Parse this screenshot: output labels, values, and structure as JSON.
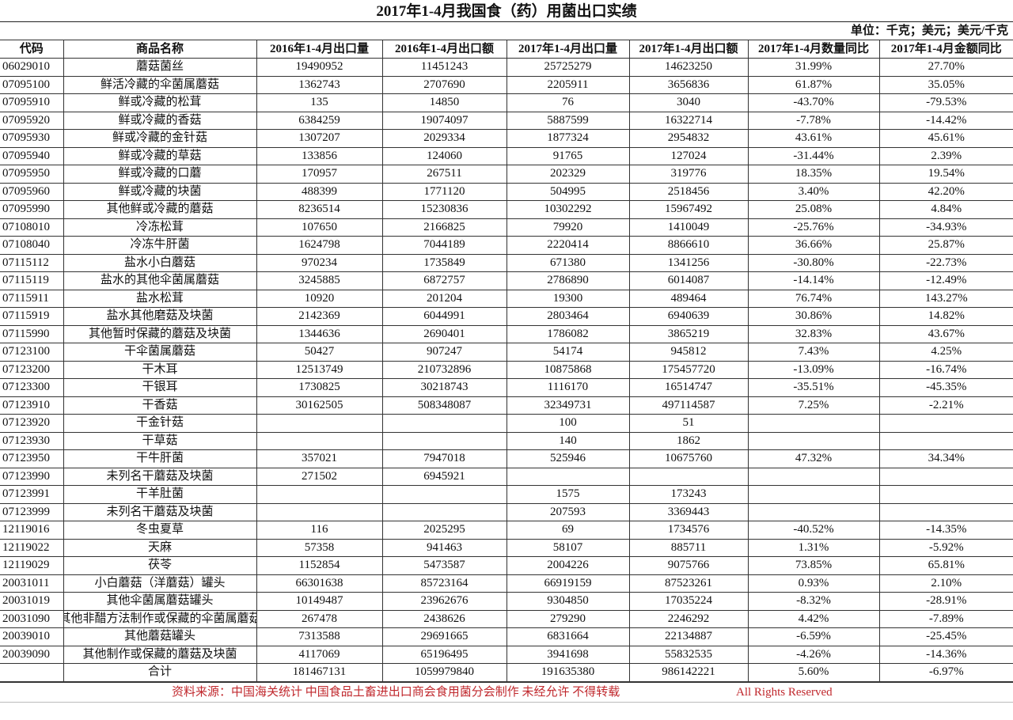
{
  "title": "2017年1-4月我国食（药）用菌出口实绩",
  "unit": "单位：千克；美元；美元/千克",
  "headers": [
    "代码",
    "商品名称",
    "2016年1-4月出口量",
    "2016年1-4月出口额",
    "2017年1-4月出口量",
    "2017年1-4月出口额",
    "2017年1-4月数量同比",
    "2017年1-4月金额同比"
  ],
  "rows": [
    [
      "06029010",
      "蘑菇菌丝",
      "19490952",
      "11451243",
      "25725279",
      "14623250",
      "31.99%",
      "27.70%"
    ],
    [
      "07095100",
      "鲜活冷藏的伞菌属蘑菇",
      "1362743",
      "2707690",
      "2205911",
      "3656836",
      "61.87%",
      "35.05%"
    ],
    [
      "07095910",
      "鲜或冷藏的松茸",
      "135",
      "14850",
      "76",
      "3040",
      "-43.70%",
      "-79.53%"
    ],
    [
      "07095920",
      "鲜或冷藏的香菇",
      "6384259",
      "19074097",
      "5887599",
      "16322714",
      "-7.78%",
      "-14.42%"
    ],
    [
      "07095930",
      "鲜或冷藏的金针菇",
      "1307207",
      "2029334",
      "1877324",
      "2954832",
      "43.61%",
      "45.61%"
    ],
    [
      "07095940",
      "鲜或冷藏的草菇",
      "133856",
      "124060",
      "91765",
      "127024",
      "-31.44%",
      "2.39%"
    ],
    [
      "07095950",
      "鲜或冷藏的口蘑",
      "170957",
      "267511",
      "202329",
      "319776",
      "18.35%",
      "19.54%"
    ],
    [
      "07095960",
      "鲜或冷藏的块菌",
      "488399",
      "1771120",
      "504995",
      "2518456",
      "3.40%",
      "42.20%"
    ],
    [
      "07095990",
      "其他鲜或冷藏的蘑菇",
      "8236514",
      "15230836",
      "10302292",
      "15967492",
      "25.08%",
      "4.84%"
    ],
    [
      "07108010",
      "冷冻松茸",
      "107650",
      "2166825",
      "79920",
      "1410049",
      "-25.76%",
      "-34.93%"
    ],
    [
      "07108040",
      "冷冻牛肝菌",
      "1624798",
      "7044189",
      "2220414",
      "8866610",
      "36.66%",
      "25.87%"
    ],
    [
      "07115112",
      "盐水小白蘑菇",
      "970234",
      "1735849",
      "671380",
      "1341256",
      "-30.80%",
      "-22.73%"
    ],
    [
      "07115119",
      "盐水的其他伞菌属蘑菇",
      "3245885",
      "6872757",
      "2786890",
      "6014087",
      "-14.14%",
      "-12.49%"
    ],
    [
      "07115911",
      "盐水松茸",
      "10920",
      "201204",
      "19300",
      "489464",
      "76.74%",
      "143.27%"
    ],
    [
      "07115919",
      "盐水其他磨菇及块菌",
      "2142369",
      "6044991",
      "2803464",
      "6940639",
      "30.86%",
      "14.82%"
    ],
    [
      "07115990",
      "其他暂时保藏的蘑菇及块菌",
      "1344636",
      "2690401",
      "1786082",
      "3865219",
      "32.83%",
      "43.67%"
    ],
    [
      "07123100",
      "干伞菌属蘑菇",
      "50427",
      "907247",
      "54174",
      "945812",
      "7.43%",
      "4.25%"
    ],
    [
      "07123200",
      "干木耳",
      "12513749",
      "210732896",
      "10875868",
      "175457720",
      "-13.09%",
      "-16.74%"
    ],
    [
      "07123300",
      "干银耳",
      "1730825",
      "30218743",
      "1116170",
      "16514747",
      "-35.51%",
      "-45.35%"
    ],
    [
      "07123910",
      "干香菇",
      "30162505",
      "508348087",
      "32349731",
      "497114587",
      "7.25%",
      "-2.21%"
    ],
    [
      "07123920",
      "干金针菇",
      "",
      "",
      "100",
      "51",
      "",
      ""
    ],
    [
      "07123930",
      "干草菇",
      "",
      "",
      "140",
      "1862",
      "",
      ""
    ],
    [
      "07123950",
      "干牛肝菌",
      "357021",
      "7947018",
      "525946",
      "10675760",
      "47.32%",
      "34.34%"
    ],
    [
      "07123990",
      "未列名干蘑菇及块菌",
      "271502",
      "6945921",
      "",
      "",
      "",
      ""
    ],
    [
      "07123991",
      "干羊肚菌",
      "",
      "",
      "1575",
      "173243",
      "",
      ""
    ],
    [
      "07123999",
      "未列名干蘑菇及块菌",
      "",
      "",
      "207593",
      "3369443",
      "",
      ""
    ],
    [
      "12119016",
      "冬虫夏草",
      "116",
      "2025295",
      "69",
      "1734576",
      "-40.52%",
      "-14.35%"
    ],
    [
      "12119022",
      "天麻",
      "57358",
      "941463",
      "58107",
      "885711",
      "1.31%",
      "-5.92%"
    ],
    [
      "12119029",
      "茯苓",
      "1152854",
      "5473587",
      "2004226",
      "9075766",
      "73.85%",
      "65.81%"
    ],
    [
      "20031011",
      "小白蘑菇（洋蘑菇）罐头",
      "66301638",
      "85723164",
      "66919159",
      "87523261",
      "0.93%",
      "2.10%"
    ],
    [
      "20031019",
      "其他伞菌属蘑菇罐头",
      "10149487",
      "23962676",
      "9304850",
      "17035224",
      "-8.32%",
      "-28.91%"
    ],
    [
      "20031090",
      "其他非醋方法制作或保藏的伞菌属蘑菇",
      "267478",
      "2438626",
      "279290",
      "2246292",
      "4.42%",
      "-7.89%"
    ],
    [
      "20039010",
      "其他蘑菇罐头",
      "7313588",
      "29691665",
      "6831664",
      "22134887",
      "-6.59%",
      "-25.45%"
    ],
    [
      "20039090",
      "其他制作或保藏的蘑菇及块菌",
      "4117069",
      "65196495",
      "3941698",
      "55832535",
      "-4.26%",
      "-14.36%"
    ]
  ],
  "total": [
    "",
    "合计",
    "181467131",
    "1059979840",
    "191635380",
    "986142221",
    "5.60%",
    "-6.97%"
  ],
  "footer": {
    "source": "资料来源：中国海关统计 中国食品土畜进出口商会食用菌分会制作 未经允许 不得转载",
    "rights": "All Rights Reserved",
    "color": "#c0282d"
  }
}
